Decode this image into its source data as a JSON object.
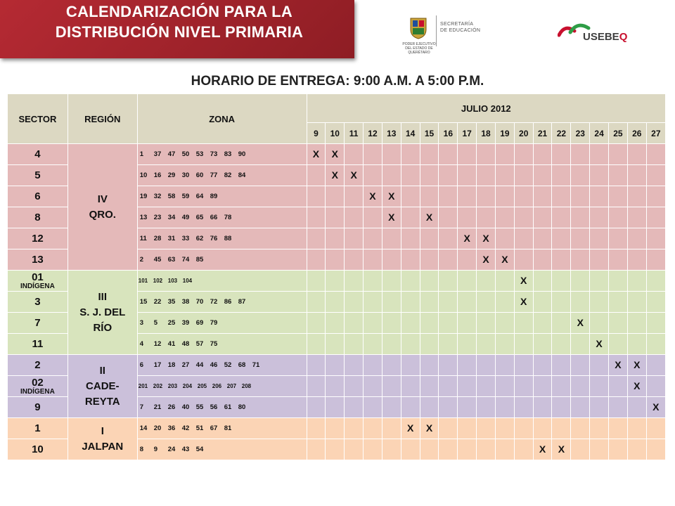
{
  "banner": {
    "title_line1": "CALENDARIZACIÓN PARA LA",
    "title_line2": "DISTRIBUCIÓN NIVEL PRIMARIA"
  },
  "logos": {
    "gob_lines": [
      "PODER EJECUTIVO",
      "DEL ESTADO DE",
      "QUERÉTARO"
    ],
    "sec_label": "SECRETARÍA\nDE EDUCACIÓN",
    "usebeq_prefix": "USEBE",
    "usebeq_suffix": "Q"
  },
  "subtitle": "HORARIO DE ENTREGA: 9:00 A.M. A 5:00 P.M.",
  "colors": {
    "iv": "#e4b9b9",
    "iii": "#d8e4bd",
    "ii": "#cbc0da",
    "i": "#fbd4b5",
    "header": "#dcd8c2",
    "banner": "#a32630"
  },
  "chart_data": {
    "type": "table",
    "title": "HORARIO DE ENTREGA: 9:00 A.M. A 5:00 P.M.",
    "headers": {
      "sector": "SECTOR",
      "region": "REGIÓN",
      "zona": "ZONA",
      "month": "JULIO 2012"
    },
    "days": [
      "9",
      "10",
      "11",
      "12",
      "13",
      "14",
      "15",
      "16",
      "17",
      "18",
      "19",
      "20",
      "21",
      "22",
      "23",
      "24",
      "25",
      "26",
      "27"
    ],
    "groups": [
      {
        "region_lines": [
          "IV",
          "QRO."
        ],
        "color_key": "iv",
        "rows": [
          {
            "sector": "4",
            "zones": [
              "1",
              "37",
              "47",
              "50",
              "53",
              "73",
              "83",
              "90"
            ],
            "marks": [
              "9",
              "10"
            ]
          },
          {
            "sector": "5",
            "zones": [
              "10",
              "16",
              "29",
              "30",
              "60",
              "77",
              "82",
              "84"
            ],
            "marks": [
              "10",
              "11"
            ]
          },
          {
            "sector": "6",
            "zones": [
              "19",
              "32",
              "58",
              "59",
              "64",
              "89"
            ],
            "marks": [
              "12",
              "13"
            ]
          },
          {
            "sector": "8",
            "zones": [
              "13",
              "23",
              "34",
              "49",
              "65",
              "66",
              "78"
            ],
            "marks": [
              "13",
              "15"
            ]
          },
          {
            "sector": "12",
            "zones": [
              "11",
              "28",
              "31",
              "33",
              "62",
              "76",
              "88"
            ],
            "marks": [
              "17",
              "18"
            ]
          },
          {
            "sector": "13",
            "zones": [
              "2",
              "45",
              "63",
              "74",
              "85"
            ],
            "marks": [
              "18",
              "19"
            ]
          }
        ]
      },
      {
        "region_lines": [
          "III",
          "S. J. DEL",
          "RÍO"
        ],
        "color_key": "iii",
        "rows": [
          {
            "sector": "01",
            "sector_sub": "INDÍGENA",
            "zones": [
              "101",
              "102",
              "103",
              "104"
            ],
            "marks": [
              "20"
            ],
            "small": true
          },
          {
            "sector": "3",
            "zones": [
              "15",
              "22",
              "35",
              "38",
              "70",
              "72",
              "86",
              "87"
            ],
            "marks": [
              "20"
            ]
          },
          {
            "sector": "7",
            "zones": [
              "3",
              "5",
              "25",
              "39",
              "69",
              "79"
            ],
            "marks": [
              "23"
            ]
          },
          {
            "sector": "11",
            "zones": [
              "4",
              "12",
              "41",
              "48",
              "57",
              "75"
            ],
            "marks": [
              "24"
            ]
          }
        ]
      },
      {
        "region_lines": [
          "II",
          "CADE-",
          "REYTA"
        ],
        "color_key": "ii",
        "rows": [
          {
            "sector": "2",
            "zones": [
              "6",
              "17",
              "18",
              "27",
              "44",
              "46",
              "52",
              "68",
              "71"
            ],
            "marks": [
              "25",
              "26"
            ]
          },
          {
            "sector": "02",
            "sector_sub": "INDÍGENA",
            "zones": [
              "201",
              "202",
              "203",
              "204",
              "205",
              "206",
              "207",
              "208"
            ],
            "marks": [
              "26"
            ],
            "small": true
          },
          {
            "sector": "9",
            "zones": [
              "7",
              "21",
              "26",
              "40",
              "55",
              "56",
              "61",
              "80"
            ],
            "marks": [
              "27"
            ]
          }
        ]
      },
      {
        "region_lines": [
          "I",
          "JALPAN"
        ],
        "color_key": "i",
        "rows": [
          {
            "sector": "1",
            "zones": [
              "14",
              "20",
              "36",
              "42",
              "51",
              "67",
              "81"
            ],
            "marks": [
              "14",
              "15"
            ]
          },
          {
            "sector": "10",
            "zones": [
              "8",
              "9",
              "24",
              "43",
              "54"
            ],
            "marks": [
              "21",
              "22"
            ]
          }
        ]
      }
    ],
    "mark_symbol": "X"
  }
}
